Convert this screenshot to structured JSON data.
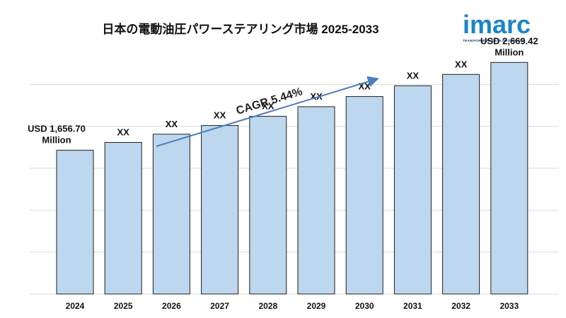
{
  "brand": {
    "name": "imarc",
    "tagline": "TRANSFORMING IDEAS INTO IMPACT",
    "color": "#1a84c9"
  },
  "chart_data": {
    "type": "bar",
    "title": "日本の電動油圧パワーステアリング市場 2025-2033",
    "categories": [
      "2024",
      "2025",
      "2026",
      "2027",
      "2028",
      "2029",
      "2030",
      "2031",
      "2032",
      "2033"
    ],
    "values": [
      1656.7,
      1747,
      1842,
      1942,
      2048,
      2159,
      2276,
      2400,
      2531,
      2669.42
    ],
    "data_labels": [
      [
        "USD 1,656.70",
        "Million"
      ],
      [
        "XX"
      ],
      [
        "XX"
      ],
      [
        "XX"
      ],
      [
        "XX"
      ],
      [
        "XX"
      ],
      [
        "XX"
      ],
      [
        "XX"
      ],
      [
        "XX"
      ],
      [
        "USD 2,669.42",
        "Million"
      ]
    ],
    "ylim": [
      0,
      2900
    ],
    "grid": true,
    "bar_color": "#bdd7ee",
    "bar_edge_color": "#1f1f1f",
    "annotation": {
      "text": "CAGR 5.44%",
      "arrow_color": "#4a7ebb"
    }
  }
}
